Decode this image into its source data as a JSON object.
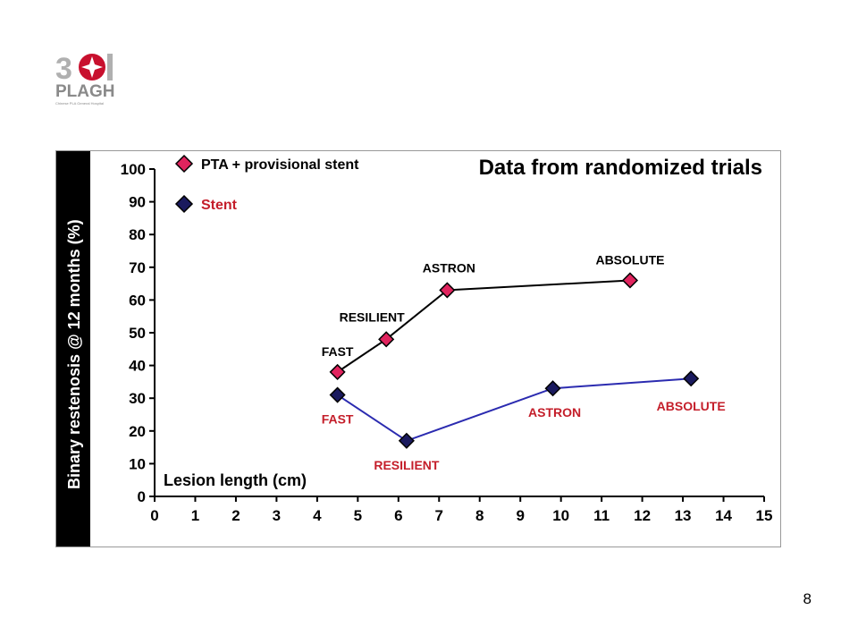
{
  "logo": {
    "mark": "301",
    "name": "PLAGH",
    "tagline": "Chinese PLA General Hospital",
    "accent": "#c8102e"
  },
  "slide_number": "8",
  "chart_data": {
    "type": "line",
    "title": "Data from randomized trials",
    "xlabel": "Lesion length (cm)",
    "ylabel": "Binary restenosis @ 12 months (%)",
    "xlim": [
      0,
      15
    ],
    "ylim": [
      0,
      100
    ],
    "x_ticks": [
      "0",
      "1",
      "2",
      "3",
      "4",
      "5",
      "6",
      "7",
      "8",
      "9",
      "10",
      "11",
      "12",
      "13",
      "14",
      "15"
    ],
    "y_ticks": [
      "0",
      "10",
      "20",
      "30",
      "40",
      "50",
      "60",
      "70",
      "80",
      "90",
      "100"
    ],
    "grid": false,
    "legend_position": "top-left",
    "series": [
      {
        "name": "PTA + provisional stent",
        "color": "#e0245e",
        "line_color": "#000000",
        "label_color": "#000000",
        "points": [
          {
            "label": "FAST",
            "x": 4.5,
            "y": 38
          },
          {
            "label": "RESILIENT",
            "x": 5.7,
            "y": 48
          },
          {
            "label": "ASTRON",
            "x": 7.2,
            "y": 63
          },
          {
            "label": "ABSOLUTE",
            "x": 11.7,
            "y": 66
          }
        ]
      },
      {
        "name": "Stent",
        "color": "#1a1a5e",
        "line_color": "#2b2bb0",
        "label_color": "#c41e2a",
        "points": [
          {
            "label": "FAST",
            "x": 4.5,
            "y": 31
          },
          {
            "label": "RESILIENT",
            "x": 6.2,
            "y": 17
          },
          {
            "label": "ASTRON",
            "x": 9.8,
            "y": 33
          },
          {
            "label": "ABSOLUTE",
            "x": 13.2,
            "y": 36
          }
        ]
      }
    ]
  }
}
